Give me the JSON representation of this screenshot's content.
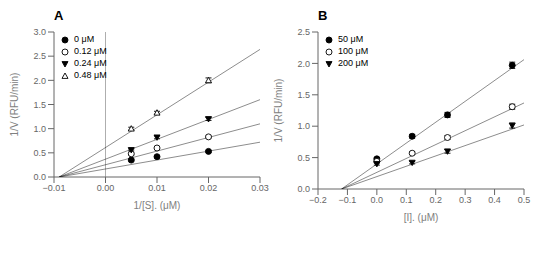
{
  "chart_data": [
    {
      "type": "scatter",
      "title": "A",
      "xlabel": "1/[S]. (μM)",
      "ylabel": "1/V (RFU/min)",
      "xlim": [
        -0.01,
        0.03
      ],
      "ylim": [
        0.0,
        3.0
      ],
      "xticks": [
        {
          "value": -0.01,
          "label": "−0.01"
        },
        {
          "value": 0.0,
          "label": "0.00"
        },
        0.01,
        0.02,
        0.03
      ],
      "yticks": [
        {
          "value": 0.0,
          "label": "0.0"
        },
        0.5,
        {
          "value": 1.0,
          "label": "1.0"
        },
        1.5,
        {
          "value": 2.0,
          "label": "2.0"
        },
        2.5,
        {
          "value": 3.0,
          "label": "3.0"
        }
      ],
      "legend": "upper left",
      "vline_x": 0.0,
      "series": [
        {
          "name": "0 μM",
          "marker": "filled_circle",
          "color": "#000000",
          "x": [
            0.005,
            0.01,
            0.02
          ],
          "values": [
            0.35,
            0.42,
            0.53
          ],
          "yerr": [
            0.02,
            0.02,
            0.02
          ],
          "fit_x": [
            -0.009,
            0.03
          ],
          "fit_y": [
            0.0,
            0.72
          ]
        },
        {
          "name": "0.12 μM",
          "marker": "open_circle",
          "color": "#000000",
          "x": [
            0.005,
            0.01,
            0.02
          ],
          "values": [
            0.48,
            0.6,
            0.83
          ],
          "yerr": [
            0.02,
            0.02,
            0.02
          ],
          "fit_x": [
            -0.009,
            0.03
          ],
          "fit_y": [
            0.0,
            1.1
          ]
        },
        {
          "name": "0.24 μM",
          "marker": "filled_triangle_down",
          "color": "#000000",
          "x": [
            0.005,
            0.01,
            0.02
          ],
          "values": [
            0.56,
            0.82,
            1.2
          ],
          "yerr": [
            0.02,
            0.03,
            0.03
          ],
          "fit_x": [
            -0.009,
            0.03
          ],
          "fit_y": [
            0.0,
            1.6
          ]
        },
        {
          "name": "0.48 μM",
          "marker": "open_triangle_up",
          "color": "#000000",
          "x": [
            0.005,
            0.01,
            0.02
          ],
          "values": [
            1.0,
            1.33,
            2.0
          ],
          "yerr": [
            0.03,
            0.03,
            0.05
          ],
          "fit_x": [
            -0.009,
            0.03
          ],
          "fit_y": [
            0.0,
            2.64
          ]
        }
      ]
    },
    {
      "type": "scatter",
      "title": "B",
      "xlabel": "[I]. (μM)",
      "ylabel": "1/V (RFU/min)",
      "xlim": [
        -0.2,
        0.5
      ],
      "ylim": [
        0.0,
        2.5
      ],
      "xticks": [
        {
          "value": -0.2,
          "label": "−0.2"
        },
        {
          "value": -0.1,
          "label": "−0.1"
        },
        {
          "value": 0.0,
          "label": "0.0"
        },
        0.1,
        0.2,
        0.3,
        0.4,
        0.5
      ],
      "yticks": [
        {
          "value": 0.0,
          "label": "0.0"
        },
        0.5,
        {
          "value": 1.0,
          "label": "1.0"
        },
        1.5,
        {
          "value": 2.0,
          "label": "2.0"
        },
        2.5
      ],
      "legend": "upper left",
      "series": [
        {
          "name": "50 μM",
          "marker": "filled_circle",
          "color": "#000000",
          "x": [
            0.0,
            0.12,
            0.24,
            0.46
          ],
          "values": [
            0.48,
            0.84,
            1.18,
            1.97
          ],
          "yerr": [
            0.02,
            0.03,
            0.04,
            0.05
          ],
          "fit_x": [
            -0.12,
            0.5
          ],
          "fit_y": [
            0.0,
            2.06
          ]
        },
        {
          "name": "100 μM",
          "marker": "open_circle",
          "color": "#000000",
          "x": [
            0.0,
            0.12,
            0.24,
            0.46
          ],
          "values": [
            0.44,
            0.57,
            0.82,
            1.31
          ],
          "yerr": [
            0.02,
            0.02,
            0.03,
            0.04
          ],
          "fit_x": [
            -0.12,
            0.5
          ],
          "fit_y": [
            0.0,
            1.37
          ]
        },
        {
          "name": "200 μM",
          "marker": "filled_triangle_down",
          "color": "#000000",
          "x": [
            0.0,
            0.12,
            0.24,
            0.46
          ],
          "values": [
            0.4,
            0.42,
            0.6,
            1.01
          ],
          "yerr": [
            0.02,
            0.02,
            0.03,
            0.04
          ],
          "fit_x": [
            -0.12,
            0.5
          ],
          "fit_y": [
            0.0,
            1.02
          ]
        }
      ]
    }
  ]
}
